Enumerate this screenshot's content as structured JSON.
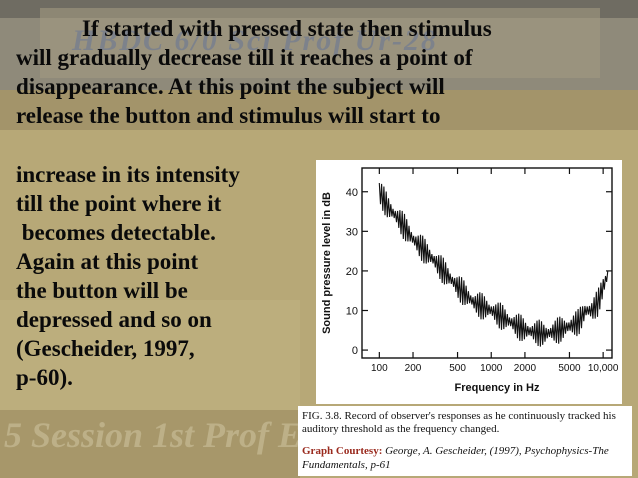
{
  "watermarks": {
    "top": "HBDC 6/0 Sci Prof Ur-28",
    "bottom": "5 Session 1st Prof E"
  },
  "paragraph_lines": [
    "If started with pressed state then stimulus",
    "will gradually decrease till it reaches a point of",
    "disappearance. At this point the subject will",
    "release the button and stimulus will start to"
  ],
  "left_column_lines": [
    "increase in its intensity",
    "till the point where it",
    " becomes detectable.",
    "Again at this point",
    "the button will be",
    "depressed and so on",
    "(Gescheider, 1997,",
    "p-60)."
  ],
  "figure": {
    "caption": "FIG. 3.8. Record of observer's responses as he continuously tracked his auditory threshold as the frequency changed.",
    "courtesy_label": "Graph Courtesy:",
    "courtesy_source": "George, A. Gescheider, (1997), Psychophysics-The Fundamentals, p-61"
  },
  "chart_data": {
    "type": "line",
    "title": "",
    "xlabel": "Frequency in Hz",
    "ylabel": "Sound pressure level in dB",
    "x_scale": "log",
    "x_ticks": [
      100,
      200,
      500,
      1000,
      2000,
      5000,
      10000
    ],
    "x_tick_labels": [
      "100",
      "200",
      "500",
      "1000",
      "2000",
      "5000",
      "10,000"
    ],
    "y_ticks": [
      0,
      10,
      20,
      30,
      40
    ],
    "y_tick_labels": [
      "0",
      "10",
      "20",
      "30",
      "40"
    ],
    "xlim": [
      70,
      12000
    ],
    "ylim": [
      -2,
      46
    ],
    "grid": false,
    "series": [
      {
        "values_x": [
          100,
          120,
          150,
          200,
          300,
          500,
          700,
          1000,
          1500,
          2000,
          3000,
          4000,
          5000,
          6000,
          7000,
          8000,
          9000,
          10000,
          11000
        ],
        "values_y": [
          40,
          36,
          33,
          28,
          23,
          16,
          12,
          10,
          7,
          5,
          4,
          5,
          6,
          7,
          10,
          10,
          12,
          16,
          19
        ]
      }
    ]
  }
}
